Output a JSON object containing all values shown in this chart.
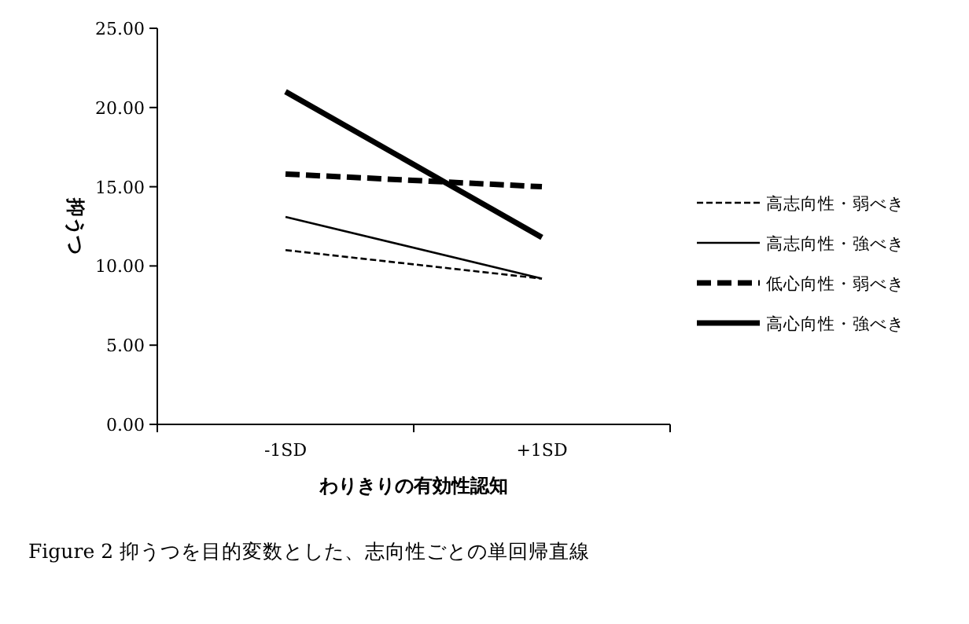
{
  "chart_data": {
    "type": "line",
    "ylabel": "抑うつ",
    "xlabel": "わりきりの有効性認知",
    "categories": [
      "-1SD",
      "+1SD"
    ],
    "series": [
      {
        "name": "高志向性・弱べき",
        "color": "#000000",
        "line_style": "dotted",
        "values": [
          11.0,
          9.2
        ]
      },
      {
        "name": "高志向性・強べき",
        "color": "#000000",
        "line_style": "solid",
        "values": [
          13.1,
          9.2
        ]
      },
      {
        "name": "低心向性・弱べき",
        "color": "#000000",
        "line_style": "dashed",
        "values": [
          15.8,
          15.0
        ]
      },
      {
        "name": "高心向性・強べき",
        "color": "#000000",
        "line_style": "solid",
        "values": [
          21.0,
          11.8
        ]
      }
    ],
    "ylim": [
      0,
      25
    ],
    "yticks": [
      {
        "value": 0,
        "label": "0.00"
      },
      {
        "value": 5,
        "label": "5.00"
      },
      {
        "value": 10,
        "label": "10.00"
      },
      {
        "value": 15,
        "label": "15.00"
      },
      {
        "value": 20,
        "label": "20.00"
      },
      {
        "value": 25,
        "label": "25.00"
      }
    ],
    "grid": false,
    "legend": "right",
    "marker": "none",
    "annotations": [
      "Figure 2 抑うつを目的変数とした、志向性ごとの単回帰直線"
    ]
  }
}
